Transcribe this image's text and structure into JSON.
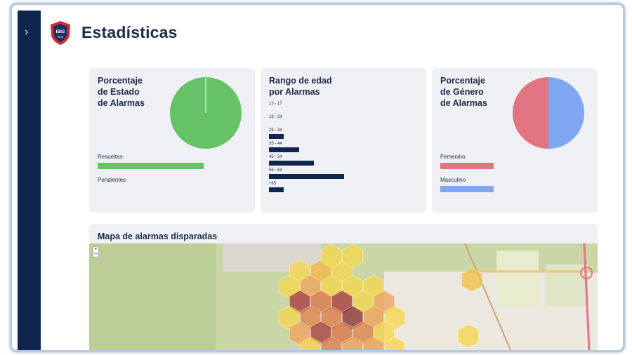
{
  "header": {
    "title": "Estadísticas",
    "logo_text": "IBIS SOS"
  },
  "sidebar": {
    "toggle_icon": "chevron-right-icon"
  },
  "status_card": {
    "title": "Porcentaje\nde Estado\nde Alarmas",
    "legend": [
      {
        "label": "Resueltas",
        "value": 99,
        "color": "#66c266"
      },
      {
        "label": "Pendientes",
        "value": 1,
        "color": "#66c266"
      }
    ]
  },
  "age_card": {
    "title": "Rango de edad\npor Alarmas",
    "items": [
      {
        "label": "13 - 17",
        "value": 0
      },
      {
        "label": "18 - 24",
        "value": 0
      },
      {
        "label": "25 - 34",
        "value": 1
      },
      {
        "label": "35 - 44",
        "value": 2
      },
      {
        "label": "45 - 54",
        "value": 3
      },
      {
        "label": "55 - 64",
        "value": 5
      },
      {
        "label": "+65",
        "value": 1
      }
    ]
  },
  "gender_card": {
    "title": "Porcentaje\nde Género\nde Alarmas",
    "legend": [
      {
        "label": "Femenino",
        "value": 50,
        "color": "#e07480"
      },
      {
        "label": "Masculino",
        "value": 50,
        "color": "#7fa6f0"
      }
    ]
  },
  "map_card": {
    "title": "Mapa de alarmas disparadas",
    "zoom_in": "+",
    "zoom_out": "−"
  }
}
